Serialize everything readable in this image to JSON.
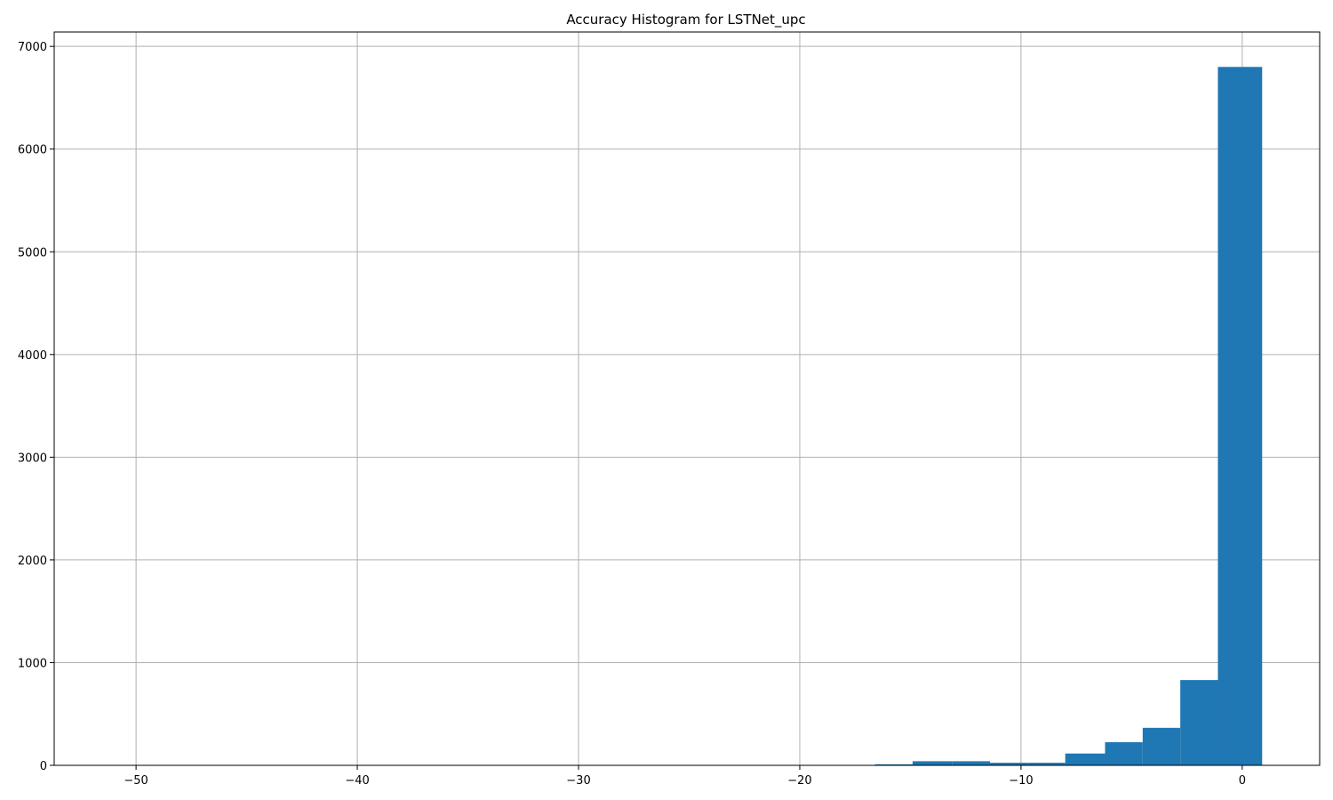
{
  "chart_data": {
    "type": "bar",
    "title": "Accuracy Histogram for LSTNet_upc",
    "xlabel": "",
    "ylabel": "",
    "xlim": [
      -53.7,
      3.5
    ],
    "ylim": [
      0,
      7140
    ],
    "xticks": [
      -50,
      -40,
      -30,
      -20,
      -10,
      0
    ],
    "xtick_labels": [
      "−50",
      "−40",
      "−30",
      "−20",
      "−10",
      "0"
    ],
    "yticks": [
      0,
      1000,
      2000,
      3000,
      4000,
      5000,
      6000,
      7000
    ],
    "ytick_labels": [
      "0",
      "1000",
      "2000",
      "3000",
      "4000",
      "5000",
      "6000",
      "7000"
    ],
    "grid": true,
    "bar_color": "#1f77b4",
    "series": [
      {
        "bins": [
          {
            "x0": -35.6,
            "x1": -33.9,
            "count": 3
          },
          {
            "x0": -33.9,
            "x1": -32.1,
            "count": 3
          },
          {
            "x0": -30.4,
            "x1": -28.7,
            "count": 3
          },
          {
            "x0": -28.7,
            "x1": -26.9,
            "count": 3
          },
          {
            "x0": -26.9,
            "x1": -25.2,
            "count": 3
          },
          {
            "x0": -25.2,
            "x1": -23.5,
            "count": 3
          },
          {
            "x0": -23.5,
            "x1": -21.8,
            "count": 3
          },
          {
            "x0": -21.8,
            "x1": -20.0,
            "count": 3
          },
          {
            "x0": -20.0,
            "x1": -18.3,
            "count": 3
          },
          {
            "x0": -18.3,
            "x1": -16.6,
            "count": 3
          },
          {
            "x0": -16.6,
            "x1": -14.9,
            "count": 10
          },
          {
            "x0": -14.9,
            "x1": -13.1,
            "count": 40
          },
          {
            "x0": -13.1,
            "x1": -11.4,
            "count": 40
          },
          {
            "x0": -11.4,
            "x1": -9.7,
            "count": 25
          },
          {
            "x0": -9.7,
            "x1": -8.0,
            "count": 25
          },
          {
            "x0": -8.0,
            "x1": -6.2,
            "count": 115
          },
          {
            "x0": -6.2,
            "x1": -4.5,
            "count": 225
          },
          {
            "x0": -4.5,
            "x1": -2.8,
            "count": 365
          },
          {
            "x0": -2.8,
            "x1": -1.1,
            "count": 830
          },
          {
            "x0": -1.1,
            "x1": 0.9,
            "count": 6800
          }
        ]
      }
    ]
  }
}
